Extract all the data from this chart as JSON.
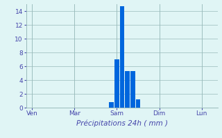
{
  "title": "Précipitations 24h ( mm )",
  "bar_color": "#0066dd",
  "background_color": "#e0f5f5",
  "grid_color": "#99bbbb",
  "axis_label_color": "#4444aa",
  "tick_label_color": "#4444aa",
  "ylim": [
    0,
    15
  ],
  "yticks": [
    0,
    2,
    4,
    6,
    8,
    10,
    12,
    14
  ],
  "day_labels": [
    "Ven",
    "Mar",
    "Sam",
    "Dim",
    "Lun"
  ],
  "day_positions": [
    0,
    8,
    16,
    24,
    32
  ],
  "bar_positions": [
    15,
    16,
    17,
    18,
    19,
    20
  ],
  "bar_heights": [
    0.8,
    7.0,
    14.7,
    5.3,
    5.3,
    1.2
  ],
  "xlim": [
    -1,
    35
  ],
  "figwidth": 3.2,
  "figheight": 2.0,
  "dpi": 100
}
